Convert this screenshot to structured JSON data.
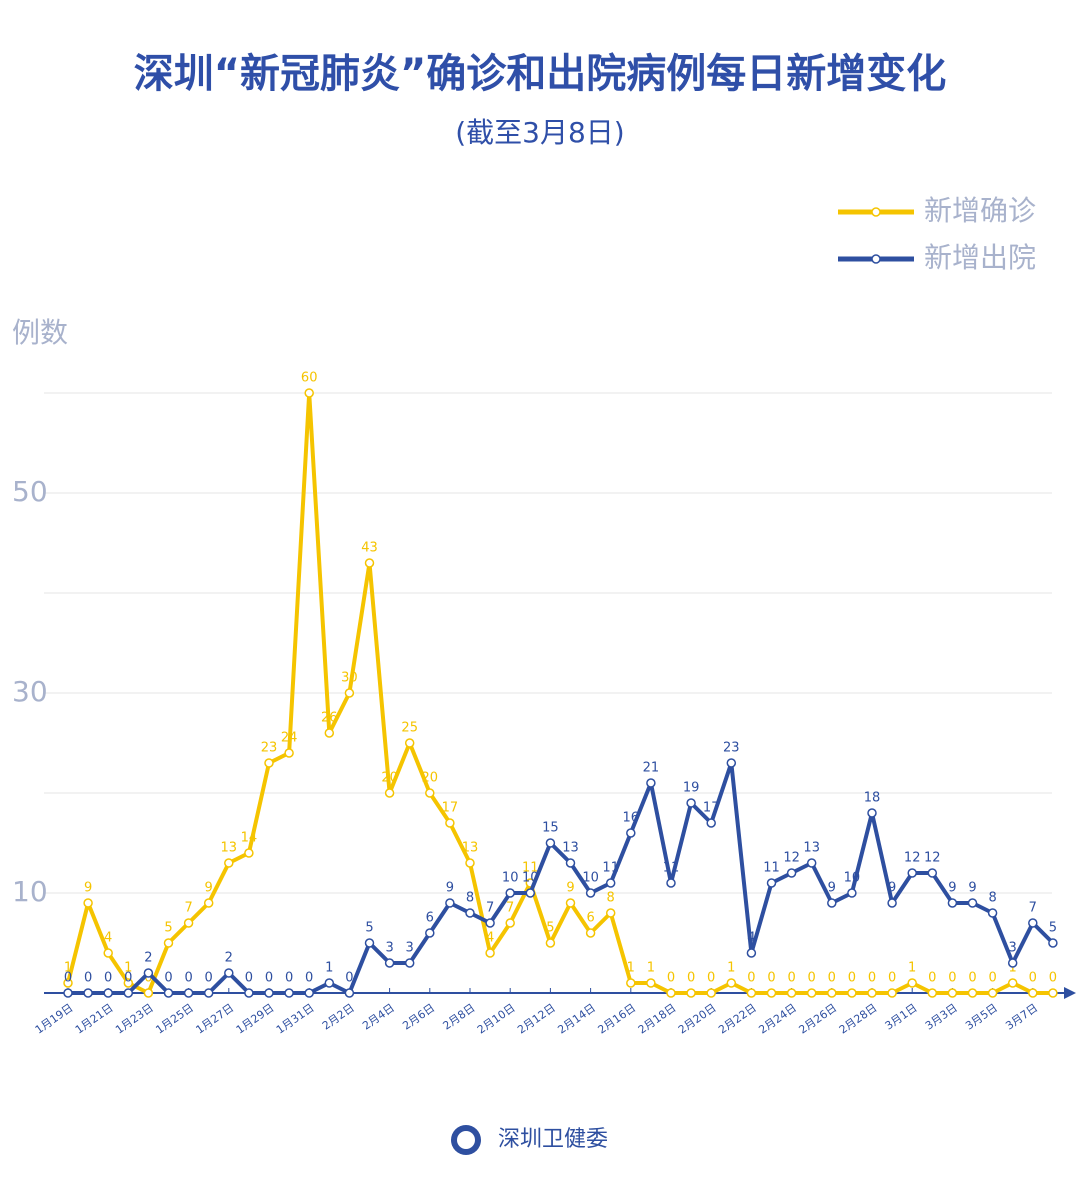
{
  "chart_data": {
    "type": "line",
    "title": "深圳“新冠肺炎”确诊和出院病例每日新增变化",
    "subtitle": "(截至3月8日)",
    "y_label": "例数",
    "footer": "深圳卫健委",
    "categories": [
      "1月19日",
      null,
      "1月21日",
      null,
      "1月23日",
      null,
      "1月25日",
      null,
      "1月27日",
      null,
      "1月29日",
      null,
      "1月31日",
      null,
      "2月2日",
      null,
      "2月4日",
      null,
      "2月6日",
      null,
      "2月8日",
      null,
      "2月10日",
      null,
      "2月12日",
      null,
      "2月14日",
      null,
      "2月16日",
      null,
      "2月18日",
      null,
      "2月20日",
      null,
      "2月22日",
      null,
      "2月24日",
      null,
      "2月26日",
      null,
      "2月28日",
      null,
      "3月1日",
      null,
      "3月3日",
      null,
      "3月5日",
      null,
      "3月7日",
      null
    ],
    "series": [
      {
        "name": "新增确诊",
        "color": "#f5c400",
        "values": [
          1,
          9,
          4,
          1,
          0,
          5,
          7,
          9,
          13,
          14,
          23,
          24,
          60,
          26,
          30,
          43,
          20,
          25,
          20,
          17,
          13,
          4,
          7,
          11,
          5,
          9,
          6,
          8,
          1,
          1,
          0,
          0,
          0,
          1,
          0,
          0,
          0,
          0,
          0,
          0,
          0,
          0,
          1,
          0,
          0,
          0,
          0,
          1,
          0,
          0
        ]
      },
      {
        "name": "新增出院",
        "color": "#2e4fa0",
        "values": [
          0,
          0,
          0,
          0,
          2,
          0,
          0,
          0,
          2,
          0,
          0,
          0,
          0,
          1,
          0,
          5,
          3,
          3,
          6,
          9,
          8,
          7,
          10,
          10,
          15,
          13,
          10,
          11,
          16,
          21,
          11,
          19,
          17,
          23,
          4,
          11,
          12,
          13,
          9,
          10,
          18,
          9,
          12,
          12,
          9,
          9,
          8,
          3,
          7,
          5
        ]
      }
    ],
    "ylim": [
      0,
      60
    ],
    "yticks": [
      10,
      30,
      50
    ],
    "grid_lines": [
      10,
      20,
      30,
      40,
      50,
      60
    ],
    "grid": true,
    "legend": "upper right"
  }
}
